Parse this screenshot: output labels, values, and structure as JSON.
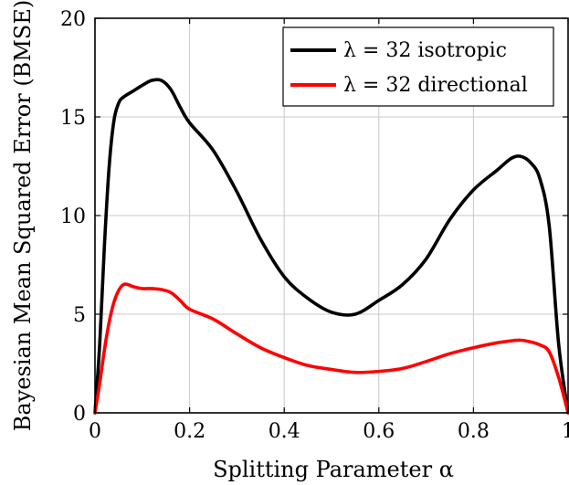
{
  "chart_data": {
    "type": "line",
    "xlabel": "Splitting Parameter α",
    "ylabel": "Bayesian Mean Squared Error (BMSE)",
    "xlim": [
      0,
      1
    ],
    "ylim": [
      0,
      20
    ],
    "x_ticks": [
      0,
      0.2,
      0.4,
      0.6,
      0.8,
      1
    ],
    "x_tick_labels": [
      "0",
      "0.2",
      "0.4",
      "0.6",
      "0.8",
      "1"
    ],
    "y_ticks": [
      0,
      5,
      10,
      15,
      20
    ],
    "y_tick_labels": [
      "0",
      "5",
      "10",
      "15",
      "20"
    ],
    "grid": true,
    "legend_position": "top-right",
    "series": [
      {
        "name": "λ = 32 isotropic",
        "color": "#000000",
        "x": [
          0,
          0.01,
          0.02,
          0.03,
          0.04,
          0.05,
          0.06,
          0.08,
          0.1,
          0.12,
          0.14,
          0.16,
          0.18,
          0.2,
          0.25,
          0.3,
          0.35,
          0.4,
          0.45,
          0.5,
          0.55,
          0.6,
          0.65,
          0.7,
          0.75,
          0.8,
          0.85,
          0.88,
          0.9,
          0.92,
          0.94,
          0.96,
          0.98,
          1.0
        ],
        "y": [
          0.0,
          3.5,
          8.5,
          12.5,
          14.8,
          15.7,
          16.0,
          16.3,
          16.6,
          16.85,
          16.85,
          16.4,
          15.5,
          14.7,
          13.3,
          11.2,
          8.8,
          6.9,
          5.8,
          5.1,
          5.0,
          5.7,
          6.5,
          7.8,
          9.8,
          11.3,
          12.3,
          12.9,
          13.0,
          12.7,
          11.9,
          9.5,
          3.5,
          0.0
        ]
      },
      {
        "name": "λ = 32 directional",
        "color": "#ff0000",
        "x": [
          0,
          0.01,
          0.02,
          0.03,
          0.04,
          0.05,
          0.06,
          0.07,
          0.08,
          0.1,
          0.12,
          0.14,
          0.16,
          0.18,
          0.2,
          0.25,
          0.3,
          0.35,
          0.4,
          0.45,
          0.5,
          0.55,
          0.6,
          0.65,
          0.7,
          0.75,
          0.8,
          0.85,
          0.88,
          0.9,
          0.92,
          0.94,
          0.96,
          0.98,
          1.0
        ],
        "y": [
          0.0,
          1.5,
          3.2,
          4.6,
          5.6,
          6.2,
          6.5,
          6.5,
          6.4,
          6.3,
          6.3,
          6.25,
          6.1,
          5.7,
          5.25,
          4.75,
          4.0,
          3.3,
          2.8,
          2.4,
          2.2,
          2.05,
          2.1,
          2.25,
          2.6,
          3.0,
          3.3,
          3.55,
          3.65,
          3.68,
          3.6,
          3.45,
          3.1,
          1.8,
          0.0
        ]
      }
    ]
  }
}
